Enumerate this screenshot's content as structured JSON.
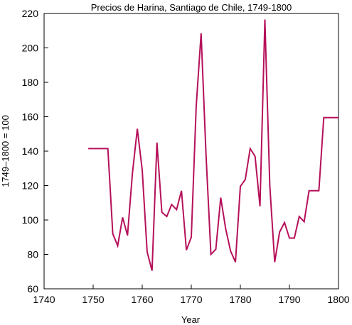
{
  "chart_data": {
    "type": "line",
    "title": "Precios de Harina, Santiago de Chile, 1749-1800",
    "xlabel": "Year",
    "ylabel": "1749–1800 = 100",
    "xlim": [
      1740,
      1800
    ],
    "ylim": [
      60,
      220
    ],
    "xticks": [
      1740,
      1750,
      1760,
      1770,
      1780,
      1790,
      1800
    ],
    "yticks": [
      60,
      80,
      100,
      120,
      140,
      160,
      180,
      200,
      220
    ],
    "grid": false,
    "line_color": "#b5105a",
    "series": [
      {
        "x": [
          1749,
          1750,
          1751,
          1752,
          1753,
          1754,
          1755,
          1756,
          1757,
          1758,
          1759,
          1760,
          1761,
          1762,
          1763,
          1764,
          1765,
          1766,
          1767,
          1768,
          1769,
          1770,
          1771,
          1772,
          1773,
          1774,
          1775,
          1776,
          1777,
          1778,
          1779,
          1780,
          1781,
          1782,
          1783,
          1784,
          1785,
          1786,
          1787,
          1788,
          1789,
          1790,
          1791,
          1792,
          1793,
          1794,
          1795,
          1796,
          1797,
          1798,
          1799,
          1800
        ],
        "values": [
          141.5,
          141.5,
          141.5,
          141.5,
          141.5,
          92,
          85,
          101.5,
          91,
          127,
          153,
          129,
          81.5,
          70.5,
          145,
          104.5,
          102,
          109,
          106,
          117,
          82.5,
          90,
          166,
          208.5,
          138,
          80,
          83,
          113,
          95,
          82,
          75.5,
          119.5,
          123.5,
          141.5,
          137,
          108,
          216.5,
          120,
          75.5,
          93,
          98.5,
          89.5,
          89.5,
          102,
          99,
          117,
          117,
          117,
          159.5,
          159.5,
          159.5,
          159.5
        ]
      }
    ]
  }
}
